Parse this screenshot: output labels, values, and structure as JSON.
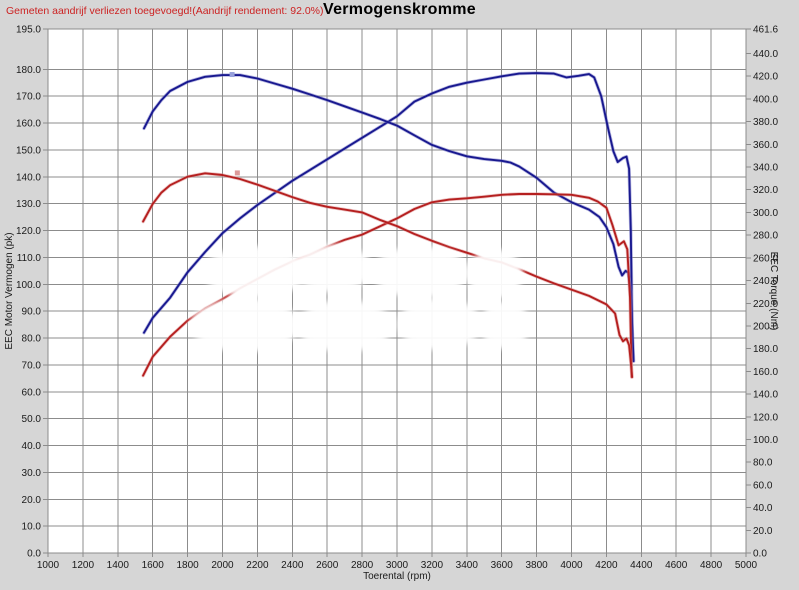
{
  "header": {
    "note": "Gemeten aandrijf verliezen toegevoegd!(Aandrijf rendement: 92.0%)",
    "title": "Vermogenskromme"
  },
  "colors": {
    "background": "#d6d6d6",
    "plot_background": "#ffffff",
    "grid": "#8c8c8c",
    "note_red": "#cc2222",
    "run1_blue": "#18188f",
    "run1_blue_halo": "#7070c4",
    "run2_red": "#b51f1f",
    "run2_red_halo": "#dc8a8a"
  },
  "chart_data": {
    "type": "line",
    "title": "Vermogenskromme",
    "grid": true,
    "legend_position": "none",
    "x_axis": {
      "label": "Toerental (rpm)",
      "min": 1000,
      "max": 5000,
      "tick_step": 200
    },
    "left_axis": {
      "label": "EEC Motor Vermogen (pk)",
      "min": 0,
      "max": 195,
      "tick_step": 10,
      "unit": "pk"
    },
    "right_axis": {
      "label": "EEC Torque (Nm)",
      "min": 0,
      "max": 461.6,
      "tick_step": 20,
      "unit": "Nm"
    },
    "series": [
      {
        "name": "run1-power-pk",
        "color": "#18188f",
        "halo": "#7070c4",
        "axis": "left",
        "points": [
          [
            1550,
            82
          ],
          [
            1600,
            87.5
          ],
          [
            1700,
            95
          ],
          [
            1800,
            104.5
          ],
          [
            1900,
            112
          ],
          [
            2000,
            119
          ],
          [
            2100,
            124.5
          ],
          [
            2200,
            129.5
          ],
          [
            2300,
            134
          ],
          [
            2400,
            138.5
          ],
          [
            2500,
            142.5
          ],
          [
            2600,
            146.5
          ],
          [
            2700,
            150.5
          ],
          [
            2800,
            154.5
          ],
          [
            2900,
            158.5
          ],
          [
            3000,
            162.5
          ],
          [
            3100,
            168
          ],
          [
            3200,
            171
          ],
          [
            3300,
            173.5
          ],
          [
            3400,
            175
          ],
          [
            3500,
            176.2
          ],
          [
            3600,
            177.4
          ],
          [
            3700,
            178.4
          ],
          [
            3800,
            178.6
          ],
          [
            3900,
            178.4
          ],
          [
            3970,
            177
          ],
          [
            4040,
            177.6
          ],
          [
            4100,
            178.2
          ],
          [
            4130,
            177
          ],
          [
            4170,
            170
          ],
          [
            4210,
            158
          ],
          [
            4240,
            149.5
          ],
          [
            4265,
            145.5
          ],
          [
            4295,
            147
          ],
          [
            4315,
            147.5
          ],
          [
            4330,
            143
          ],
          [
            4340,
            120
          ],
          [
            4350,
            71.5
          ]
        ]
      },
      {
        "name": "run1-torque-nm",
        "color": "#18188f",
        "halo": "#7070c4",
        "axis": "right",
        "points": [
          [
            1550,
            374
          ],
          [
            1600,
            389
          ],
          [
            1650,
            399
          ],
          [
            1700,
            407
          ],
          [
            1800,
            415
          ],
          [
            1900,
            419.5
          ],
          [
            2000,
            421
          ],
          [
            2100,
            421
          ],
          [
            2200,
            418
          ],
          [
            2300,
            413.5
          ],
          [
            2400,
            409
          ],
          [
            2500,
            404
          ],
          [
            2600,
            399
          ],
          [
            2700,
            393.5
          ],
          [
            2800,
            388
          ],
          [
            2900,
            382.5
          ],
          [
            3000,
            376.5
          ],
          [
            3100,
            368
          ],
          [
            3200,
            359.5
          ],
          [
            3300,
            354
          ],
          [
            3400,
            349.5
          ],
          [
            3500,
            347
          ],
          [
            3600,
            345.5
          ],
          [
            3650,
            344
          ],
          [
            3700,
            340.5
          ],
          [
            3800,
            330.5
          ],
          [
            3900,
            317.5
          ],
          [
            4000,
            309
          ],
          [
            4100,
            302.5
          ],
          [
            4160,
            296
          ],
          [
            4200,
            287
          ],
          [
            4240,
            272
          ],
          [
            4270,
            252
          ],
          [
            4290,
            244.5
          ],
          [
            4310,
            248.5
          ],
          [
            4325,
            247
          ],
          [
            4340,
            230
          ],
          [
            4350,
            190
          ],
          [
            4356,
            169
          ]
        ]
      },
      {
        "name": "run2-power-pk",
        "color": "#b51f1f",
        "halo": "#dc8a8a",
        "axis": "left",
        "points": [
          [
            1545,
            66
          ],
          [
            1600,
            73
          ],
          [
            1700,
            80.5
          ],
          [
            1800,
            86.5
          ],
          [
            1900,
            91
          ],
          [
            2000,
            94.5
          ],
          [
            2100,
            98.5
          ],
          [
            2200,
            102
          ],
          [
            2300,
            105.5
          ],
          [
            2400,
            108.5
          ],
          [
            2500,
            111
          ],
          [
            2600,
            114
          ],
          [
            2700,
            116.5
          ],
          [
            2800,
            118.5
          ],
          [
            2900,
            121.5
          ],
          [
            3000,
            124.5
          ],
          [
            3100,
            128
          ],
          [
            3200,
            130.5
          ],
          [
            3300,
            131.5
          ],
          [
            3400,
            132
          ],
          [
            3500,
            132.6
          ],
          [
            3600,
            133.3
          ],
          [
            3700,
            133.6
          ],
          [
            3800,
            133.6
          ],
          [
            3900,
            133.5
          ],
          [
            4000,
            133.3
          ],
          [
            4100,
            132.2
          ],
          [
            4150,
            130.8
          ],
          [
            4200,
            128.5
          ],
          [
            4235,
            122
          ],
          [
            4270,
            114.5
          ],
          [
            4300,
            116
          ],
          [
            4320,
            113
          ],
          [
            4335,
            95
          ],
          [
            4345,
            65.5
          ]
        ]
      },
      {
        "name": "run2-torque-nm",
        "color": "#b51f1f",
        "halo": "#dc8a8a",
        "axis": "right",
        "points": [
          [
            1545,
            292
          ],
          [
            1600,
            307.5
          ],
          [
            1650,
            317.5
          ],
          [
            1700,
            324
          ],
          [
            1800,
            331.5
          ],
          [
            1900,
            334.5
          ],
          [
            2000,
            333
          ],
          [
            2100,
            329.5
          ],
          [
            2200,
            324.5
          ],
          [
            2300,
            319
          ],
          [
            2400,
            313.5
          ],
          [
            2500,
            308.5
          ],
          [
            2600,
            305
          ],
          [
            2700,
            302.5
          ],
          [
            2800,
            300
          ],
          [
            2900,
            293.5
          ],
          [
            3000,
            288
          ],
          [
            3100,
            281
          ],
          [
            3200,
            275
          ],
          [
            3300,
            269.5
          ],
          [
            3400,
            264.5
          ],
          [
            3500,
            259.5
          ],
          [
            3600,
            256
          ],
          [
            3700,
            250
          ],
          [
            3800,
            243.5
          ],
          [
            3900,
            237.5
          ],
          [
            4000,
            232
          ],
          [
            4100,
            226.5
          ],
          [
            4200,
            219
          ],
          [
            4250,
            211
          ],
          [
            4275,
            192
          ],
          [
            4295,
            186.5
          ],
          [
            4315,
            189
          ],
          [
            4330,
            183
          ],
          [
            4340,
            168
          ],
          [
            4347,
            155
          ]
        ]
      }
    ],
    "point_markers": [
      {
        "rpm": 2055,
        "value": 421.5,
        "axis": "right",
        "color": "#97a0dc"
      },
      {
        "rpm": 2085,
        "value": 334.8,
        "axis": "right",
        "color": "#dc9a9a"
      }
    ]
  }
}
